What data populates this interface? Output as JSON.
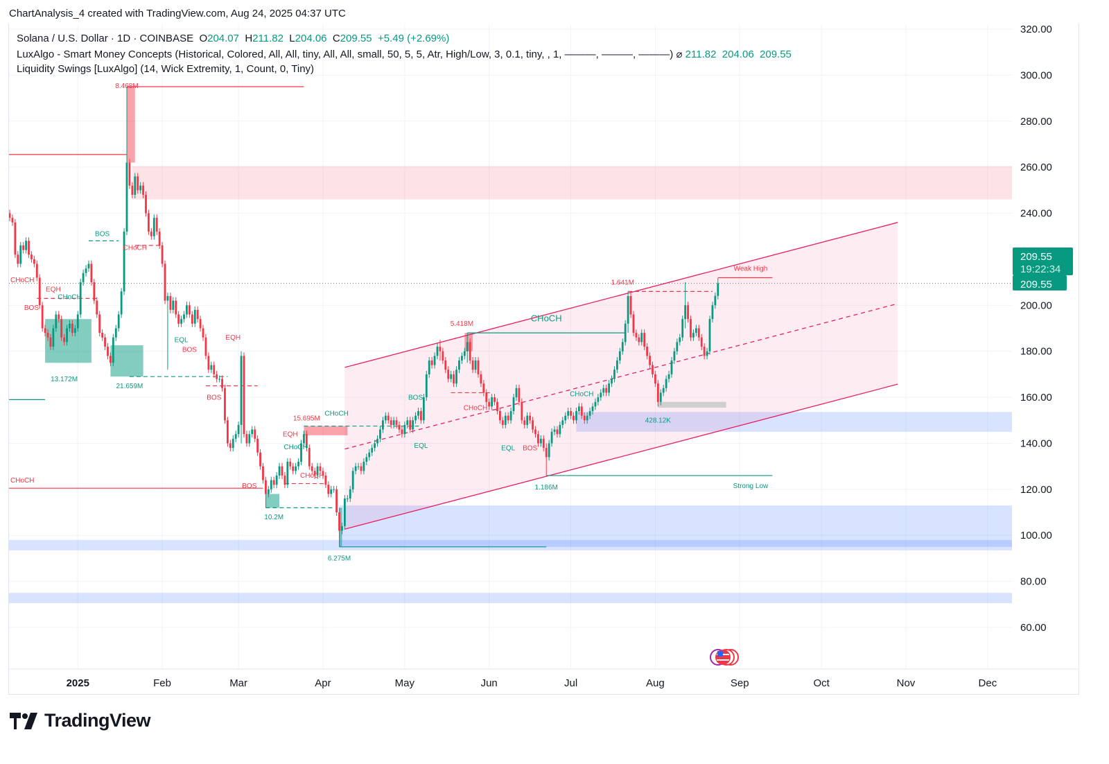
{
  "header": {
    "caption": "ChartAnalysis_4 created with TradingView.com, Aug 24, 2025 04:37 UTC"
  },
  "legend": {
    "symbol": "Solana / U.S. Dollar · 1D · COINBASE",
    "o_label": "O",
    "o": "204.07",
    "h_label": "H",
    "h": "211.82",
    "l_label": "L",
    "l": "204.06",
    "c_label": "C",
    "c": "209.55",
    "change": "+5.49 (+2.69%)",
    "indicator1": "LuxAlgo - Smart Money Concepts (Historical, Colored, All, All, tiny, All, All, small, 50, 5, 5, Atr, High/Low, 3, 0.1, tiny, , 1, ———, ———, ———)",
    "indicator1_symbol": "⌀",
    "indicator1_values": [
      "211.82",
      "204.06",
      "209.55"
    ],
    "indicator2": "Liquidity Swings [LuxAlgo] (14, Wick Extremity, 1, Count, 0, Tiny)"
  },
  "price_badge": {
    "price": "209.55",
    "countdown": "19:22:34",
    "color": "#089981"
  },
  "footer": {
    "brand": "TradingView",
    "logo_text": "TV"
  },
  "colors": {
    "up": "#089981",
    "down": "#f23645",
    "channel": "#e91e63",
    "zone_blue": "#2962ff",
    "zone_red": "#f23645"
  },
  "events_icon": "us-flag-economic-events-icon",
  "chart_data": {
    "type": "candlestick",
    "title": "",
    "ylim": [
      40,
      325
    ],
    "y_ticks": [
      "320.00",
      "300.00",
      "280.00",
      "260.00",
      "240.00",
      "200.00",
      "180.00",
      "160.00",
      "140.00",
      "120.00",
      "100.00",
      "80.00",
      "60.00"
    ],
    "x_ticks": [
      {
        "label": "2025",
        "date": "2025-01-01",
        "bold": true
      },
      {
        "label": "Feb",
        "date": "2025-02-01"
      },
      {
        "label": "Mar",
        "date": "2025-03-01"
      },
      {
        "label": "Apr",
        "date": "2025-04-01"
      },
      {
        "label": "May",
        "date": "2025-05-01"
      },
      {
        "label": "Jun",
        "date": "2025-06-01"
      },
      {
        "label": "Jul",
        "date": "2025-07-01"
      },
      {
        "label": "Aug",
        "date": "2025-08-01"
      },
      {
        "label": "Sep",
        "date": "2025-09-01"
      },
      {
        "label": "Oct",
        "date": "2025-10-01"
      },
      {
        "label": "Nov",
        "date": "2025-11-01"
      },
      {
        "label": "Dec",
        "date": "2025-12-01"
      }
    ],
    "grid": true,
    "first_date": "2024-12-07",
    "first_open": 240,
    "closes": [
      238,
      236,
      222,
      218,
      226,
      224,
      228,
      222,
      220,
      218,
      212,
      200,
      190,
      188,
      186,
      182,
      190,
      196,
      194,
      186,
      184,
      190,
      192,
      188,
      190,
      196,
      210,
      214,
      216,
      218,
      210,
      202,
      196,
      188,
      186,
      182,
      178,
      175,
      186,
      190,
      196,
      206,
      232,
      262,
      252,
      248,
      256,
      250,
      252,
      248,
      240,
      232,
      230,
      238,
      232,
      226,
      218,
      202,
      204,
      198,
      202,
      196,
      192,
      194,
      196,
      200,
      196,
      192,
      198,
      194,
      190,
      186,
      178,
      172,
      174,
      170,
      168,
      168,
      164,
      150,
      140,
      138,
      142,
      144,
      148,
      178,
      144,
      140,
      144,
      146,
      142,
      136,
      130,
      124,
      118,
      120,
      124,
      122,
      126,
      130,
      126,
      122,
      132,
      130,
      128,
      130,
      132,
      140,
      144,
      138,
      130,
      128,
      126,
      130,
      128,
      126,
      122,
      118,
      120,
      120,
      110,
      102,
      104,
      116,
      116,
      120,
      128,
      130,
      130,
      128,
      132,
      134,
      136,
      138,
      140,
      142,
      146,
      150,
      152,
      150,
      148,
      150,
      148,
      146,
      144,
      148,
      150,
      146,
      150,
      152,
      154,
      150,
      160,
      170,
      176,
      174,
      178,
      182,
      180,
      176,
      172,
      168,
      170,
      166,
      172,
      176,
      178,
      180,
      184,
      176,
      172,
      176,
      170,
      166,
      162,
      158,
      156,
      160,
      158,
      154,
      150,
      148,
      152,
      150,
      154,
      160,
      164,
      158,
      150,
      148,
      152,
      150,
      146,
      144,
      140,
      142,
      138,
      134,
      140,
      145,
      146,
      144,
      148,
      150,
      152,
      154,
      152,
      150,
      154,
      156,
      152,
      150,
      152,
      154,
      156,
      158,
      160,
      162,
      164,
      162,
      166,
      168,
      172,
      176,
      180,
      184,
      192,
      204,
      196,
      188,
      186,
      184,
      188,
      182,
      178,
      174,
      170,
      166,
      158,
      162,
      164,
      168,
      170,
      176,
      180,
      184,
      186,
      194,
      200,
      194,
      186,
      188,
      190,
      186,
      182,
      178,
      180,
      194,
      200,
      204.07,
      209.55
    ],
    "wick_extremes": [
      {
        "date": "2025-01-19",
        "high": 295,
        "low": 240
      },
      {
        "date": "2025-02-03",
        "high": 205,
        "low": 172
      },
      {
        "date": "2025-03-02",
        "high": 180,
        "low": 140
      },
      {
        "date": "2025-03-11",
        "high": 124,
        "low": 112
      },
      {
        "date": "2025-04-07",
        "high": 112,
        "low": 95
      },
      {
        "date": "2025-05-14",
        "high": 185,
        "low": 176
      },
      {
        "date": "2025-05-24",
        "high": 188,
        "low": 175
      },
      {
        "date": "2025-06-22",
        "high": 140,
        "low": 126
      },
      {
        "date": "2025-07-22",
        "high": 206,
        "low": 188
      },
      {
        "date": "2025-08-02",
        "high": 166,
        "low": 156
      },
      {
        "date": "2025-08-12",
        "high": 210,
        "low": 190
      },
      {
        "date": "2025-08-24",
        "high": 211.82,
        "low": 204.06
      }
    ],
    "last_price": 209.55,
    "zones": [
      {
        "kind": "supply",
        "color": "#f23645",
        "opacity": 0.14,
        "from": "2025-01-21",
        "to": "end",
        "top": 260.5,
        "bottom": 246
      },
      {
        "kind": "blue",
        "color": "#2962ff",
        "opacity": 0.18,
        "from": "2025-07-03",
        "to": "end",
        "top": 153.6,
        "bottom": 145
      },
      {
        "kind": "blue",
        "color": "#2962ff",
        "opacity": 0.18,
        "from": "2025-04-07",
        "to": "end",
        "top": 113,
        "bottom": 95
      },
      {
        "kind": "blue",
        "color": "#2962ff",
        "opacity": 0.18,
        "from": "start",
        "to": "end",
        "top": 98,
        "bottom": 93.5
      },
      {
        "kind": "blue",
        "color": "#2962ff",
        "opacity": 0.18,
        "from": "start",
        "to": "end",
        "top": 75,
        "bottom": 70.5
      },
      {
        "kind": "ob-bear",
        "color": "#f23645",
        "opacity": 0.45,
        "from": "2025-01-19",
        "to": "2025-01-22",
        "top": 295,
        "bottom": 262
      },
      {
        "kind": "ob-bear",
        "color": "#f23645",
        "opacity": 0.45,
        "from": "2025-03-25",
        "to": "2025-04-10",
        "top": 147.5,
        "bottom": 143.5
      },
      {
        "kind": "ob-bear",
        "color": "#f23645",
        "opacity": 0.45,
        "from": "2025-05-23",
        "to": "2025-05-26",
        "top": 188,
        "bottom": 180
      },
      {
        "kind": "ob-bull",
        "color": "#089981",
        "opacity": 0.5,
        "from": "2024-12-20",
        "to": "2025-01-06",
        "top": 194,
        "bottom": 175
      },
      {
        "kind": "ob-bull",
        "color": "#089981",
        "opacity": 0.5,
        "from": "2025-01-13",
        "to": "2025-01-25",
        "top": 182.6,
        "bottom": 169
      },
      {
        "kind": "ob-bull",
        "color": "#089981",
        "opacity": 0.5,
        "from": "2025-03-11",
        "to": "2025-03-16",
        "top": 118,
        "bottom": 112
      },
      {
        "kind": "ob-bull",
        "color": "#089981",
        "opacity": 0.5,
        "from": "2025-04-07",
        "to": "2025-04-08",
        "top": 112,
        "bottom": 95
      },
      {
        "kind": "liquidity",
        "color": "#9fbfb4",
        "opacity": 0.5,
        "from": "2025-08-02",
        "to": "2025-08-27",
        "top": 158,
        "bottom": 155.5
      }
    ],
    "channel": {
      "from": "2025-04-09",
      "to": "2025-10-29",
      "upper": [
        173,
        236
      ],
      "middle": [
        137.5,
        200.7
      ],
      "lower": [
        102.7,
        165.7
      ],
      "color": "#e91e63",
      "fill_opacity": 0.08
    },
    "lines": [
      {
        "color": "#f23645",
        "from": "start",
        "to": "2025-01-19",
        "price": 265.5,
        "dash": false
      },
      {
        "color": "#f23645",
        "from": "2025-01-19",
        "to": "2025-03-25",
        "price": 295,
        "dash": false
      },
      {
        "color": "#f23645",
        "from": "start",
        "to": "2025-03-10",
        "price": 120.5,
        "dash": false
      },
      {
        "color": "#089981",
        "from": "start",
        "to": "2024-12-20",
        "price": 159,
        "dash": false
      },
      {
        "color": "#f23645",
        "from": "2025-08-24",
        "to": "2025-09-13",
        "price": 212,
        "dash": false
      },
      {
        "color": "#089981",
        "from": "2025-06-22",
        "to": "2025-09-13",
        "price": 126,
        "dash": false
      },
      {
        "color": "#089981",
        "from": "2025-05-24",
        "to": "2025-07-21",
        "price": 188,
        "dash": false
      },
      {
        "color": "#089981",
        "from": "2025-04-07",
        "to": "2025-06-22",
        "price": 95,
        "dash": false
      },
      {
        "color": "#f23645",
        "from": "2025-07-22",
        "to": "2025-08-22",
        "price": 206,
        "dash": true
      },
      {
        "color": "#089981",
        "from": "2025-01-05",
        "to": "2025-01-16",
        "price": 228,
        "dash": true
      },
      {
        "color": "#089981",
        "from": "2025-01-20",
        "to": "2025-02-25",
        "price": 169,
        "dash": true
      },
      {
        "color": "#089981",
        "from": "2025-03-11",
        "to": "2025-04-05",
        "price": 112,
        "dash": true
      },
      {
        "color": "#089981",
        "from": "2025-03-25",
        "to": "2025-05-07",
        "price": 147.5,
        "dash": true
      },
      {
        "color": "#f23645",
        "from": "2025-03-18",
        "to": "2025-04-02",
        "price": 122.5,
        "dash": true
      },
      {
        "color": "#f23645",
        "from": "2025-02-17",
        "to": "2025-03-08",
        "price": 165,
        "dash": true
      },
      {
        "color": "#f23645",
        "from": "2025-05-18",
        "to": "2025-06-02",
        "price": 162,
        "dash": true
      },
      {
        "color": "#f23645",
        "from": "2024-12-17",
        "to": "2025-01-08",
        "price": 203,
        "dash": true
      },
      {
        "color": "#f23645",
        "from": "2025-01-22",
        "to": "2025-02-01",
        "price": 226,
        "dash": true
      }
    ],
    "labels": [
      {
        "text": "8.468M",
        "color": "#f23645",
        "date": "2025-01-19",
        "price": 301
      },
      {
        "text": "13.172M",
        "color": "#089981",
        "date": "2024-12-27",
        "price": 167
      },
      {
        "text": "21.659M",
        "color": "#089981",
        "date": "2025-01-20",
        "price": 164
      },
      {
        "text": "10.2M",
        "color": "#089981",
        "date": "2025-03-14",
        "price": 107
      },
      {
        "text": "15.695M",
        "color": "#f23645",
        "date": "2025-03-26",
        "price": 150
      },
      {
        "text": "6.275M",
        "color": "#089981",
        "date": "2025-04-07",
        "price": 89
      },
      {
        "text": "5.418M",
        "color": "#f23645",
        "date": "2025-05-22",
        "price": 191
      },
      {
        "text": "1.641M",
        "color": "#f23645",
        "date": "2025-07-20",
        "price": 209
      },
      {
        "text": "428.12K",
        "color": "#089981",
        "date": "2025-08-02",
        "price": 149
      },
      {
        "text": "1.186M",
        "color": "#089981",
        "date": "2025-06-22",
        "price": 120
      },
      {
        "text": "Weak High",
        "color": "#f23645",
        "date": "2025-09-05",
        "price": 215
      },
      {
        "text": "Strong Low",
        "color": "#089981",
        "date": "2025-09-05",
        "price": 120.5
      },
      {
        "text": "CHoCH",
        "color": "#089981",
        "date": "2025-06-22",
        "price": 193,
        "big": true
      },
      {
        "text": "BOS",
        "color": "#089981",
        "date": "2025-01-10",
        "price": 230
      },
      {
        "text": "CHoCH",
        "color": "#f23645",
        "date": "2025-01-22",
        "price": 224
      },
      {
        "text": "BOS",
        "color": "#f23645",
        "date": "2024-12-15",
        "price": 198
      },
      {
        "text": "EQH",
        "color": "#f23645",
        "date": "2024-12-23",
        "price": 206
      },
      {
        "text": "CHoCH",
        "color": "#089981",
        "date": "2024-12-29",
        "price": 206
      },
      {
        "text": "CHoCH",
        "color": "#f23645",
        "date": "2024-11-30",
        "price": 210
      },
      {
        "text": "EQL",
        "color": "#089981",
        "date": "2025-02-08",
        "price": 184
      },
      {
        "text": "BOS",
        "color": "#f23645",
        "date": "2025-02-11",
        "price": 183
      },
      {
        "text": "EQH",
        "color": "#f23645",
        "date": "2025-02-27",
        "price": 185
      },
      {
        "text": "BOS",
        "color": "#f23645",
        "date": "2025-02-20",
        "price": 159
      },
      {
        "text": "BOS",
        "color": "#f23645",
        "date": "2025-03-05",
        "price": 120.5
      },
      {
        "text": "EQH",
        "color": "#f23645",
        "date": "2025-03-20",
        "price": 143
      },
      {
        "text": "CHoCH",
        "color": "#089981",
        "date": "2025-03-22",
        "price": 144
      },
      {
        "text": "CHoCH",
        "color": "#f23645",
        "date": "2025-03-28",
        "price": 125
      },
      {
        "text": "CHoCH",
        "color": "#089981",
        "date": "2025-04-06",
        "price": 152
      },
      {
        "text": "BOS",
        "color": "#089981",
        "date": "2025-05-05",
        "price": 159
      },
      {
        "text": "EQL",
        "color": "#089981",
        "date": "2025-05-07",
        "price": 138
      },
      {
        "text": "CHoCH",
        "color": "#f23645",
        "date": "2025-05-27",
        "price": 154.5
      },
      {
        "text": "EQL",
        "color": "#089981",
        "date": "2025-06-08",
        "price": 137
      },
      {
        "text": "BOS",
        "color": "#f23645",
        "date": "2025-06-16",
        "price": 137
      },
      {
        "text": "CHoCH",
        "color": "#089981",
        "date": "2025-07-05",
        "price": 160.5
      },
      {
        "text": "CHoCH",
        "color": "#f23645",
        "date": "2024-11-30",
        "price": 123
      }
    ]
  }
}
